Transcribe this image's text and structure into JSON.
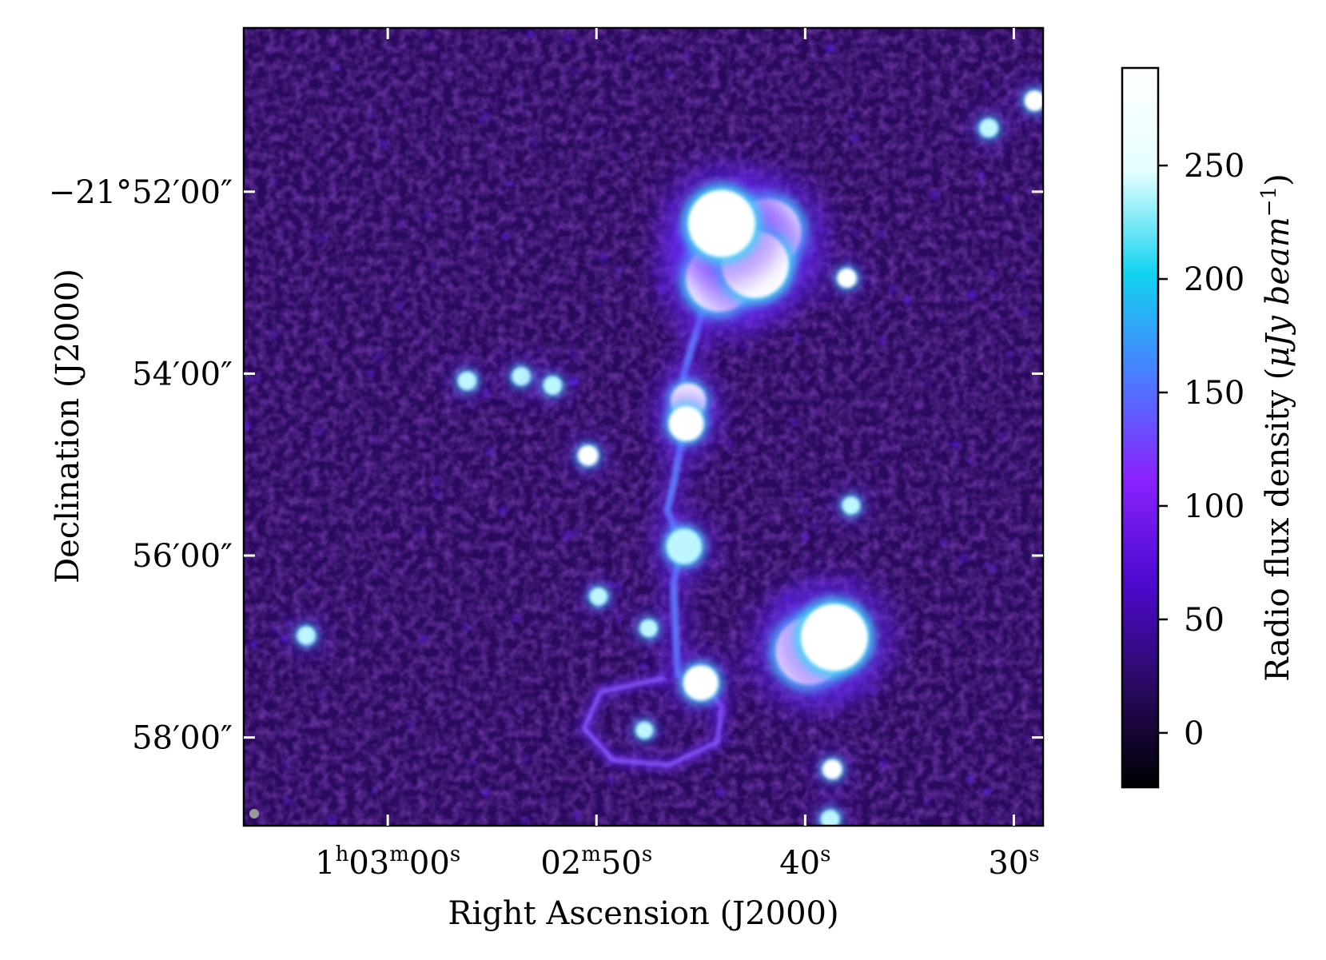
{
  "chart_data": {
    "type": "heatmap",
    "title": "",
    "xlabel": "Right Ascension (J2000)",
    "ylabel": "Declination (J2000)",
    "x_ticks": [
      {
        "ra_sec": 3780,
        "parts": [
          {
            "t": "1"
          },
          {
            "t": "h",
            "sup": true
          },
          {
            "t": "03"
          },
          {
            "t": "m",
            "sup": true
          },
          {
            "t": "00"
          },
          {
            "t": "s",
            "sup": true
          }
        ]
      },
      {
        "ra_sec": 3770,
        "parts": [
          {
            "t": "02"
          },
          {
            "t": "m",
            "sup": true
          },
          {
            "t": "50"
          },
          {
            "t": "s",
            "sup": true
          }
        ]
      },
      {
        "ra_sec": 3760,
        "parts": [
          {
            "t": "40"
          },
          {
            "t": "s",
            "sup": true
          }
        ]
      },
      {
        "ra_sec": 3750,
        "parts": [
          {
            "t": "30"
          },
          {
            "t": "s",
            "sup": true
          }
        ]
      }
    ],
    "y_ticks": [
      {
        "dec_arcmin": -52,
        "label": "−21°52′00″"
      },
      {
        "dec_arcmin": -54,
        "label": "54′00″"
      },
      {
        "dec_arcmin": -56,
        "label": "56′00″"
      },
      {
        "dec_arcmin": -58,
        "label": "58′00″"
      }
    ],
    "x_range_sec": [
      3786.9,
      3748.6
    ],
    "y_range_arcmin": [
      -50.2,
      -58.97
    ],
    "colorbar": {
      "label": "Radio flux density (μJy beam⁻¹)",
      "label_base": "Radio flux density (",
      "label_unit": "μJy beam",
      "label_exp": "−1",
      "label_close": ")",
      "vmin": -24,
      "vmax": 293,
      "ticks": [
        0,
        50,
        100,
        150,
        200,
        250
      ],
      "colors": [
        "#000000",
        "#2a0a62",
        "#4e0ad0",
        "#8a22ff",
        "#4a7cff",
        "#11d3f0",
        "#e6ffff",
        "#ffffff"
      ]
    },
    "colors": {
      "background": "#2a0a5e",
      "bright": "#ffffff",
      "cyan": "#3fd6f5",
      "jet": "#6a2bff"
    },
    "sources": [
      {
        "ra": 3763.6,
        "dec": -52.67,
        "flux": 300,
        "kind": "lobe"
      },
      {
        "ra": 3764.1,
        "dec": -52.95,
        "flux": 300,
        "kind": "lobe"
      },
      {
        "ra": 3761.8,
        "dec": -52.45,
        "flux": 300,
        "kind": "lobe"
      },
      {
        "ra": 3762.4,
        "dec": -52.8,
        "flux": 300,
        "kind": "lobe"
      },
      {
        "ra": 3764.0,
        "dec": -52.35,
        "flux": 300,
        "kind": "lobe"
      },
      {
        "ra": 3765.6,
        "dec": -54.3,
        "flux": 300,
        "kind": "knot"
      },
      {
        "ra": 3765.7,
        "dec": -54.55,
        "flux": 280,
        "kind": "knot"
      },
      {
        "ra": 3770.4,
        "dec": -54.9,
        "flux": 280,
        "kind": "point"
      },
      {
        "ra": 3759.8,
        "dec": -57.05,
        "flux": 300,
        "kind": "lobe"
      },
      {
        "ra": 3758.6,
        "dec": -56.9,
        "flux": 280,
        "kind": "lobe"
      },
      {
        "ra": 3758.0,
        "dec": -52.95,
        "flux": 250,
        "kind": "point"
      },
      {
        "ra": 3751.2,
        "dec": -51.3,
        "flux": 230,
        "kind": "point"
      },
      {
        "ra": 3749.0,
        "dec": -51.0,
        "flux": 280,
        "kind": "point"
      },
      {
        "ra": 3757.8,
        "dec": -55.45,
        "flux": 200,
        "kind": "point"
      },
      {
        "ra": 3758.7,
        "dec": -58.35,
        "flux": 260,
        "kind": "point"
      },
      {
        "ra": 3758.8,
        "dec": -58.9,
        "flux": 230,
        "kind": "point"
      },
      {
        "ra": 3776.2,
        "dec": -54.08,
        "flux": 220,
        "kind": "point"
      },
      {
        "ra": 3773.6,
        "dec": -54.03,
        "flux": 220,
        "kind": "point"
      },
      {
        "ra": 3772.1,
        "dec": -54.13,
        "flux": 220,
        "kind": "point"
      },
      {
        "ra": 3783.9,
        "dec": -56.88,
        "flux": 220,
        "kind": "point"
      },
      {
        "ra": 3769.9,
        "dec": -56.45,
        "flux": 200,
        "kind": "point"
      },
      {
        "ra": 3767.5,
        "dec": -56.8,
        "flux": 200,
        "kind": "point"
      },
      {
        "ra": 3767.7,
        "dec": -57.92,
        "flux": 180,
        "kind": "point"
      },
      {
        "ra": 3765.0,
        "dec": -57.4,
        "flux": 280,
        "kind": "knot"
      },
      {
        "ra": 3765.8,
        "dec": -55.9,
        "flux": 200,
        "kind": "knot"
      }
    ],
    "jet_path": [
      {
        "ra": 3764.5,
        "dec": -53.0
      },
      {
        "ra": 3765.3,
        "dec": -53.6
      },
      {
        "ra": 3765.8,
        "dec": -54.0
      },
      {
        "ra": 3765.9,
        "dec": -54.7
      },
      {
        "ra": 3766.3,
        "dec": -55.2
      },
      {
        "ra": 3766.6,
        "dec": -55.5
      },
      {
        "ra": 3765.9,
        "dec": -55.9
      },
      {
        "ra": 3766.3,
        "dec": -56.3
      },
      {
        "ra": 3766.2,
        "dec": -56.9
      },
      {
        "ra": 3766.1,
        "dec": -57.3
      }
    ],
    "ring_path": [
      {
        "ra": 3766.8,
        "dec": -57.35
      },
      {
        "ra": 3769.8,
        "dec": -57.5
      },
      {
        "ra": 3770.6,
        "dec": -57.9
      },
      {
        "ra": 3769.2,
        "dec": -58.25
      },
      {
        "ra": 3766.5,
        "dec": -58.3
      },
      {
        "ra": 3764.2,
        "dec": -58.05
      },
      {
        "ra": 3764.0,
        "dec": -57.65
      },
      {
        "ra": 3765.0,
        "dec": -57.4
      }
    ]
  }
}
